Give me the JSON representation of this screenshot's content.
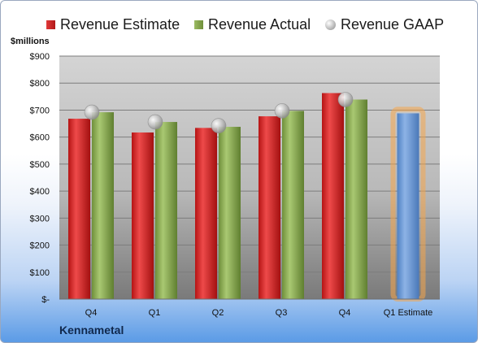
{
  "chart_data": {
    "type": "bar",
    "categories": [
      "Q4",
      "Q1",
      "Q2",
      "Q3",
      "Q4",
      "Q1 Estimate"
    ],
    "series": [
      {
        "name": "Revenue Estimate",
        "type": "bar",
        "values": [
          668,
          617,
          634,
          677,
          763,
          null
        ]
      },
      {
        "name": "Revenue Actual",
        "type": "bar",
        "values": [
          692,
          656,
          638,
          697,
          739,
          null
        ]
      },
      {
        "name": "Revenue GAAP",
        "type": "scatter",
        "values": [
          692,
          656,
          642,
          697,
          739,
          null
        ]
      }
    ],
    "forecast": {
      "category": "Q1 Estimate",
      "value": 688,
      "color": "#6a9ad6",
      "glow": "#f5a64a"
    },
    "ylabel": "$millions",
    "ylim": [
      0,
      900
    ],
    "yticks": [
      0,
      100,
      200,
      300,
      400,
      500,
      600,
      700,
      800,
      900
    ],
    "ytick_labels": [
      "$-",
      "$100",
      "$200",
      "$300",
      "$400",
      "$500",
      "$600",
      "$700",
      "$800",
      "$900"
    ],
    "grid": true,
    "legend_position": "top",
    "colors": {
      "estimate": "#c82020",
      "actual": "#86a64f",
      "gaap": "#b5b5b5"
    }
  },
  "footer": {
    "company": "Kennametal"
  }
}
